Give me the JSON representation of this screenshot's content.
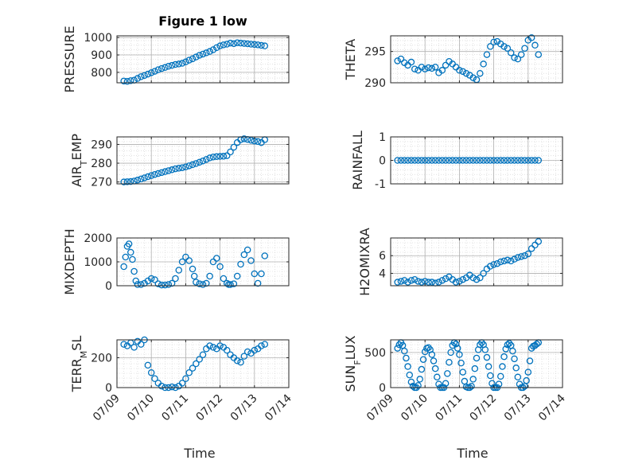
{
  "figure_title": "Figure 1 low",
  "x_label": "Time",
  "colors": {
    "marker": "#0072BD",
    "axis": "#262626",
    "grid": "#b0b0b0",
    "figure_bg": "#ffffff"
  },
  "chart_data": [
    {
      "type": "scatter",
      "ylabel": "PRESSURE",
      "ylim": [
        740,
        1010
      ],
      "yticks": [
        800,
        900,
        1000
      ],
      "ytick_labels": [
        "800",
        "900",
        "1000"
      ],
      "xlim": [
        "07/09",
        "07/14"
      ],
      "xticks": [
        "07/09",
        "07/10",
        "07/11",
        "07/12",
        "07/13",
        "07/14"
      ],
      "show_xtick_labels": false,
      "grid": true,
      "x": [
        0.2,
        0.3,
        0.4,
        0.5,
        0.6,
        0.7,
        0.8,
        0.9,
        1.0,
        1.1,
        1.2,
        1.3,
        1.4,
        1.5,
        1.6,
        1.7,
        1.8,
        1.9,
        2.0,
        2.1,
        2.2,
        2.3,
        2.4,
        2.5,
        2.6,
        2.7,
        2.8,
        2.9,
        3.0,
        3.1,
        3.2,
        3.3,
        3.4,
        3.5,
        3.6,
        3.7,
        3.8,
        3.9,
        4.0,
        4.1,
        4.2,
        4.3
      ],
      "y": [
        750,
        748,
        752,
        755,
        765,
        775,
        782,
        790,
        798,
        806,
        815,
        822,
        828,
        835,
        840,
        845,
        848,
        852,
        860,
        870,
        878,
        888,
        898,
        905,
        912,
        920,
        930,
        942,
        952,
        958,
        962,
        968,
        965,
        970,
        968,
        966,
        964,
        962,
        960,
        958,
        955,
        952
      ]
    },
    {
      "type": "scatter",
      "ylabel": "THETA",
      "ylim": [
        290,
        297.5
      ],
      "yticks": [
        290,
        295
      ],
      "ytick_labels": [
        "290",
        "295"
      ],
      "xlim": [
        "07/09",
        "07/14"
      ],
      "xticks": [
        "07/09",
        "07/10",
        "07/11",
        "07/12",
        "07/13",
        "07/14"
      ],
      "show_xtick_labels": false,
      "grid": true,
      "x": [
        0.2,
        0.3,
        0.4,
        0.5,
        0.6,
        0.7,
        0.8,
        0.9,
        1.0,
        1.1,
        1.2,
        1.3,
        1.4,
        1.5,
        1.6,
        1.7,
        1.8,
        1.9,
        2.0,
        2.1,
        2.2,
        2.3,
        2.4,
        2.5,
        2.6,
        2.7,
        2.8,
        2.9,
        3.0,
        3.1,
        3.2,
        3.3,
        3.4,
        3.5,
        3.6,
        3.7,
        3.8,
        3.9,
        4.0,
        4.1,
        4.2,
        4.3
      ],
      "y": [
        293.5,
        293.8,
        293.2,
        292.8,
        293.3,
        292.2,
        292.0,
        292.5,
        292.2,
        292.4,
        292.3,
        292.5,
        291.6,
        292.0,
        292.8,
        293.4,
        293.0,
        292.5,
        292.0,
        291.8,
        291.5,
        291.2,
        290.8,
        290.5,
        291.5,
        293.0,
        294.5,
        295.8,
        296.5,
        296.6,
        296.2,
        295.8,
        295.5,
        294.8,
        294.0,
        293.8,
        294.5,
        295.5,
        296.8,
        297.2,
        296.0,
        294.5
      ]
    },
    {
      "type": "scatter",
      "ylabel": "AIR_TEMP",
      "ylim": [
        269,
        294
      ],
      "yticks": [
        270,
        280,
        290
      ],
      "ytick_labels": [
        "270",
        "280",
        "290"
      ],
      "xlim": [
        "07/09",
        "07/14"
      ],
      "xticks": [
        "07/09",
        "07/10",
        "07/11",
        "07/12",
        "07/13",
        "07/14"
      ],
      "show_xtick_labels": false,
      "grid": true,
      "x": [
        0.2,
        0.3,
        0.4,
        0.5,
        0.6,
        0.7,
        0.8,
        0.9,
        1.0,
        1.1,
        1.2,
        1.3,
        1.4,
        1.5,
        1.6,
        1.7,
        1.8,
        1.9,
        2.0,
        2.1,
        2.2,
        2.3,
        2.4,
        2.5,
        2.6,
        2.7,
        2.8,
        2.9,
        3.0,
        3.1,
        3.2,
        3.3,
        3.4,
        3.5,
        3.6,
        3.7,
        3.8,
        3.9,
        4.0,
        4.1,
        4.2,
        4.3
      ],
      "y": [
        270.0,
        270.1,
        270.2,
        270.5,
        271.0,
        271.6,
        272.2,
        272.8,
        273.4,
        274.0,
        274.5,
        275.0,
        275.5,
        276.0,
        276.5,
        277.0,
        277.3,
        277.6,
        278.0,
        278.6,
        279.2,
        279.8,
        280.5,
        281.2,
        282.0,
        282.8,
        283.3,
        283.5,
        283.6,
        283.7,
        284.0,
        286.0,
        288.5,
        291.0,
        292.5,
        293.0,
        292.6,
        292.2,
        291.8,
        291.5,
        291.0,
        292.5
      ]
    },
    {
      "type": "scatter",
      "ylabel": "RAINFALL",
      "ylim": [
        -1,
        1
      ],
      "yticks": [
        -1,
        0,
        1
      ],
      "ytick_labels": [
        "-1",
        "0",
        "1"
      ],
      "xlim": [
        "07/09",
        "07/14"
      ],
      "xticks": [
        "07/09",
        "07/10",
        "07/11",
        "07/12",
        "07/13",
        "07/14"
      ],
      "show_xtick_labels": false,
      "grid": true,
      "x": [
        0.2,
        0.3,
        0.4,
        0.5,
        0.6,
        0.7,
        0.8,
        0.9,
        1.0,
        1.1,
        1.2,
        1.3,
        1.4,
        1.5,
        1.6,
        1.7,
        1.8,
        1.9,
        2.0,
        2.1,
        2.2,
        2.3,
        2.4,
        2.5,
        2.6,
        2.7,
        2.8,
        2.9,
        3.0,
        3.1,
        3.2,
        3.3,
        3.4,
        3.5,
        3.6,
        3.7,
        3.8,
        3.9,
        4.0,
        4.1,
        4.2,
        4.3
      ],
      "y": [
        0,
        0,
        0,
        0,
        0,
        0,
        0,
        0,
        0,
        0,
        0,
        0,
        0,
        0,
        0,
        0,
        0,
        0,
        0,
        0,
        0,
        0,
        0,
        0,
        0,
        0,
        0,
        0,
        0,
        0,
        0,
        0,
        0,
        0,
        0,
        0,
        0,
        0,
        0,
        0,
        0,
        0
      ]
    },
    {
      "type": "scatter",
      "ylabel": "MIXDEPTH",
      "ylim": [
        0,
        2000
      ],
      "yticks": [
        0,
        1000,
        2000
      ],
      "ytick_labels": [
        "0",
        "1000",
        "2000"
      ],
      "xlim": [
        "07/09",
        "07/14"
      ],
      "xticks": [
        "07/09",
        "07/10",
        "07/11",
        "07/12",
        "07/13",
        "07/14"
      ],
      "show_xtick_labels": false,
      "grid": true,
      "x": [
        0.2,
        0.25,
        0.3,
        0.35,
        0.4,
        0.45,
        0.5,
        0.55,
        0.6,
        0.7,
        0.8,
        0.9,
        1.0,
        1.1,
        1.2,
        1.3,
        1.4,
        1.5,
        1.6,
        1.7,
        1.8,
        1.9,
        2.0,
        2.1,
        2.2,
        2.25,
        2.3,
        2.4,
        2.5,
        2.6,
        2.7,
        2.8,
        2.9,
        3.0,
        3.1,
        3.2,
        3.25,
        3.3,
        3.4,
        3.5,
        3.6,
        3.7,
        3.8,
        3.9,
        4.0,
        4.1,
        4.2,
        4.3
      ],
      "y": [
        800,
        1200,
        1650,
        1750,
        1400,
        1100,
        600,
        200,
        50,
        50,
        100,
        200,
        300,
        250,
        80,
        30,
        30,
        50,
        100,
        300,
        650,
        1000,
        1200,
        1050,
        700,
        400,
        150,
        80,
        50,
        100,
        400,
        1000,
        1150,
        800,
        300,
        100,
        50,
        50,
        80,
        400,
        900,
        1300,
        1500,
        1050,
        500,
        100,
        500,
        1250
      ]
    },
    {
      "type": "scatter",
      "ylabel": "H2OMIXRA",
      "ylim": [
        2.6,
        8
      ],
      "yticks": [
        4,
        6
      ],
      "ytick_labels": [
        "4",
        "6"
      ],
      "xlim": [
        "07/09",
        "07/14"
      ],
      "xticks": [
        "07/09",
        "07/10",
        "07/11",
        "07/12",
        "07/13",
        "07/14"
      ],
      "show_xtick_labels": false,
      "grid": true,
      "x": [
        0.2,
        0.3,
        0.4,
        0.5,
        0.6,
        0.7,
        0.8,
        0.9,
        1.0,
        1.1,
        1.2,
        1.3,
        1.4,
        1.5,
        1.6,
        1.7,
        1.8,
        1.9,
        2.0,
        2.1,
        2.2,
        2.3,
        2.4,
        2.5,
        2.6,
        2.7,
        2.8,
        2.9,
        3.0,
        3.1,
        3.2,
        3.3,
        3.4,
        3.5,
        3.6,
        3.7,
        3.8,
        3.9,
        4.0,
        4.1,
        4.2,
        4.3
      ],
      "y": [
        3.0,
        3.1,
        3.2,
        3.0,
        3.2,
        3.3,
        3.1,
        3.0,
        3.1,
        3.0,
        3.0,
        2.9,
        3.0,
        3.2,
        3.4,
        3.6,
        3.3,
        3.0,
        3.1,
        3.3,
        3.5,
        3.8,
        3.5,
        3.3,
        3.5,
        4.0,
        4.5,
        4.8,
        5.0,
        5.1,
        5.3,
        5.4,
        5.5,
        5.4,
        5.6,
        5.8,
        5.9,
        6.0,
        6.2,
        6.8,
        7.2,
        7.6
      ]
    },
    {
      "type": "scatter",
      "ylabel": "TERR_MSL",
      "ylim": [
        0,
        320
      ],
      "yticks": [
        0,
        200
      ],
      "ytick_labels": [
        "0",
        "200"
      ],
      "xlim": [
        "07/09",
        "07/14"
      ],
      "xticks": [
        "07/09",
        "07/10",
        "07/11",
        "07/12",
        "07/13",
        "07/14"
      ],
      "xtick_labels": [
        "07/09",
        "07/10",
        "07/11",
        "07/12",
        "07/13",
        "07/14"
      ],
      "show_xtick_labels": true,
      "grid": true,
      "x": [
        0.2,
        0.3,
        0.4,
        0.5,
        0.6,
        0.7,
        0.8,
        0.9,
        1.0,
        1.1,
        1.2,
        1.3,
        1.4,
        1.5,
        1.6,
        1.7,
        1.8,
        1.9,
        2.0,
        2.1,
        2.2,
        2.3,
        2.4,
        2.5,
        2.6,
        2.7,
        2.8,
        2.9,
        3.0,
        3.1,
        3.2,
        3.3,
        3.4,
        3.5,
        3.6,
        3.7,
        3.8,
        3.9,
        4.0,
        4.1,
        4.2,
        4.3
      ],
      "y": [
        290,
        280,
        300,
        270,
        310,
        290,
        320,
        150,
        100,
        60,
        30,
        10,
        0,
        0,
        5,
        0,
        10,
        30,
        60,
        100,
        130,
        160,
        190,
        220,
        260,
        280,
        270,
        260,
        280,
        270,
        250,
        220,
        200,
        180,
        170,
        210,
        240,
        230,
        250,
        260,
        280,
        290
      ]
    },
    {
      "type": "scatter",
      "ylabel": "SUN_FLUX",
      "ylim": [
        0,
        680
      ],
      "yticks": [
        0,
        500
      ],
      "ytick_labels": [
        "0",
        "500"
      ],
      "xlim": [
        "07/09",
        "07/14"
      ],
      "xticks": [
        "07/09",
        "07/10",
        "07/11",
        "07/12",
        "07/13",
        "07/14"
      ],
      "xtick_labels": [
        "07/09",
        "07/10",
        "07/11",
        "07/12",
        "07/13",
        "07/14"
      ],
      "show_xtick_labels": true,
      "grid": true,
      "x": [
        0.2,
        0.25,
        0.3,
        0.35,
        0.4,
        0.45,
        0.5,
        0.55,
        0.6,
        0.65,
        0.7,
        0.75,
        0.8,
        0.85,
        0.9,
        0.95,
        1.0,
        1.05,
        1.1,
        1.15,
        1.2,
        1.25,
        1.3,
        1.35,
        1.4,
        1.45,
        1.5,
        1.55,
        1.6,
        1.65,
        1.7,
        1.75,
        1.8,
        1.85,
        1.9,
        1.95,
        2.0,
        2.05,
        2.1,
        2.15,
        2.2,
        2.25,
        2.3,
        2.35,
        2.4,
        2.45,
        2.5,
        2.55,
        2.6,
        2.65,
        2.7,
        2.75,
        2.8,
        2.85,
        2.9,
        2.95,
        3.0,
        3.05,
        3.1,
        3.15,
        3.2,
        3.25,
        3.3,
        3.35,
        3.4,
        3.45,
        3.5,
        3.55,
        3.6,
        3.65,
        3.7,
        3.75,
        3.8,
        3.85,
        3.9,
        3.95,
        4.0,
        4.05,
        4.1,
        4.15,
        4.2,
        4.25,
        4.3
      ],
      "y": [
        560,
        610,
        640,
        600,
        520,
        420,
        300,
        180,
        80,
        20,
        0,
        0,
        30,
        120,
        260,
        400,
        510,
        560,
        570,
        540,
        470,
        380,
        270,
        150,
        50,
        0,
        0,
        0,
        60,
        200,
        360,
        500,
        600,
        640,
        620,
        560,
        470,
        350,
        220,
        90,
        10,
        0,
        0,
        20,
        120,
        270,
        420,
        540,
        610,
        640,
        610,
        540,
        430,
        300,
        170,
        60,
        0,
        0,
        0,
        50,
        160,
        300,
        440,
        550,
        610,
        630,
        600,
        520,
        410,
        280,
        150,
        50,
        0,
        0,
        20,
        100,
        220,
        380,
        560,
        590,
        600,
        620,
        640
      ]
    }
  ]
}
